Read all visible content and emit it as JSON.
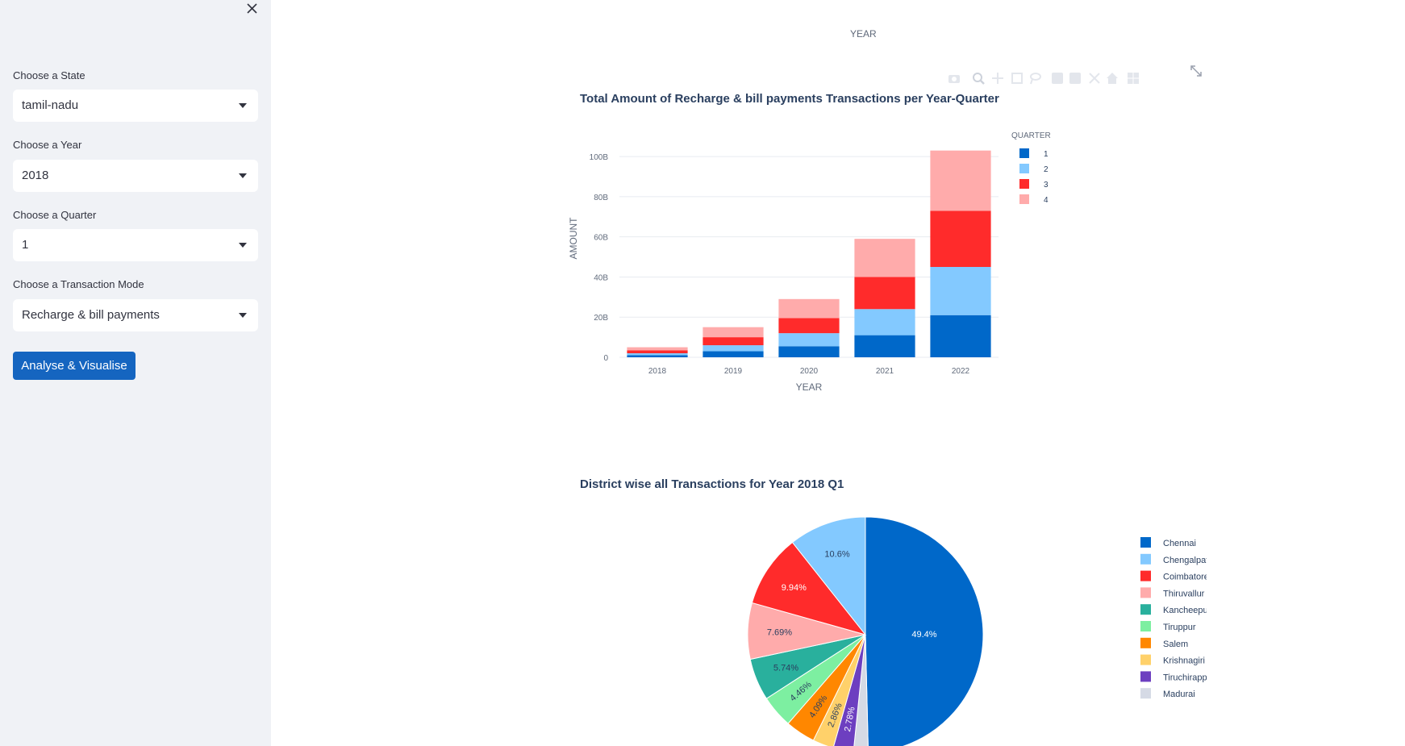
{
  "sidebar": {
    "state_label": "Choose a State",
    "state_value": "tamil-nadu",
    "year_label": "Choose a Year",
    "year_value": "2018",
    "quarter_label": "Choose a Quarter",
    "quarter_value": "1",
    "mode_label": "Choose a Transaction Mode",
    "mode_value": "Recharge & bill payments",
    "analyse_button": "Analyse & Visualise"
  },
  "top_axis_label": "YEAR",
  "toolbar_icons": [
    "camera-icon",
    "zoom-icon",
    "pan-icon",
    "box-select-icon",
    "lasso-icon",
    "zoom-in-icon",
    "zoom-out-icon",
    "autoscale-icon",
    "home-icon",
    "spike-lines-icon",
    "fullscreen-icon"
  ],
  "colors": {
    "q1": "#0068c9",
    "q2": "#83c9ff",
    "q3": "#ff2b2b",
    "q4": "#ffabab",
    "title": "#2a3f5f",
    "axis_text": "#606a7b",
    "grid": "#e8ebf0"
  },
  "chart_data": [
    {
      "type": "bar",
      "stacked": true,
      "title": "Total Amount of Recharge & bill payments Transactions per Year-Quarter",
      "xlabel": "YEAR",
      "ylabel": "AMOUNT",
      "categories": [
        "2018",
        "2019",
        "2020",
        "2021",
        "2022"
      ],
      "ylim": [
        0,
        100000000000
      ],
      "yticks": [
        "0",
        "20B",
        "40B",
        "60B",
        "80B",
        "100B"
      ],
      "legend_title": "QUARTER",
      "legend_position": "right",
      "series": [
        {
          "name": "1",
          "color": "#0068c9",
          "values": [
            1000000000,
            3000000000,
            5500000000,
            11000000000,
            21000000000
          ]
        },
        {
          "name": "2",
          "color": "#83c9ff",
          "values": [
            1000000000,
            3000000000,
            6500000000,
            13000000000,
            24000000000
          ]
        },
        {
          "name": "3",
          "color": "#ff2b2b",
          "values": [
            1500000000,
            4000000000,
            7500000000,
            16000000000,
            28000000000
          ]
        },
        {
          "name": "4",
          "color": "#ffabab",
          "values": [
            1500000000,
            5000000000,
            9500000000,
            19000000000,
            30000000000
          ]
        }
      ]
    },
    {
      "type": "pie",
      "title": "District wise all Transactions for Year 2018 Q1",
      "legend_position": "right",
      "slices": [
        {
          "label": "Chennai",
          "value": 49.4,
          "text": "49.4%",
          "color": "#0068c9",
          "text_color": "#ffffff"
        },
        {
          "label": "Madurai",
          "value": 2.0,
          "text": "",
          "color": "#d5dae5",
          "text_color": "#2a3f5f"
        },
        {
          "label": "Tiruchirappalli",
          "value": 2.78,
          "text": "2.78%",
          "color": "#6d3fc0",
          "text_color": "#ffffff"
        },
        {
          "label": "Krishnagiri",
          "value": 2.86,
          "text": "2.86%",
          "color": "#ffd16a",
          "text_color": "#2a3f5f"
        },
        {
          "label": "Salem",
          "value": 4.09,
          "text": "4.09%",
          "color": "#ff8700",
          "text_color": "#2a3f5f"
        },
        {
          "label": "Tiruppur",
          "value": 4.46,
          "text": "4.46%",
          "color": "#7defa1",
          "text_color": "#2a3f5f"
        },
        {
          "label": "Kancheepuram",
          "value": 5.74,
          "text": "5.74%",
          "color": "#29b09d",
          "text_color": "#2a3f5f"
        },
        {
          "label": "Thiruvallur",
          "value": 7.69,
          "text": "7.69%",
          "color": "#ffabab",
          "text_color": "#2a3f5f"
        },
        {
          "label": "Coimbatore",
          "value": 9.94,
          "text": "9.94%",
          "color": "#ff2b2b",
          "text_color": "#ffffff"
        },
        {
          "label": "Chengalpattu",
          "value": 10.6,
          "text": "10.6%",
          "color": "#83c9ff",
          "text_color": "#2a3f5f"
        }
      ],
      "legend_order": [
        "Chennai",
        "Chengalpattu",
        "Coimbatore",
        "Thiruvallur",
        "Kancheepuram",
        "Tiruppur",
        "Salem",
        "Krishnagiri",
        "Tiruchirappalli",
        "Madurai"
      ]
    }
  ]
}
